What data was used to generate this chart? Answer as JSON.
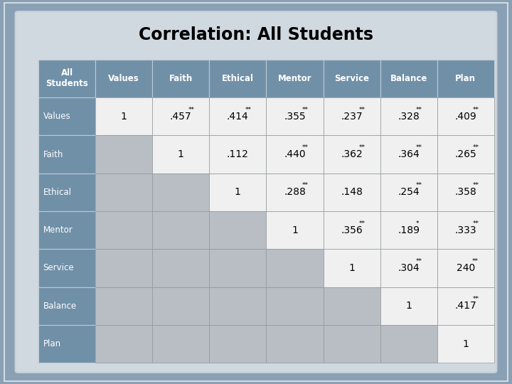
{
  "title": "Correlation: All Students",
  "col_headers": [
    "All\nStudents",
    "Values",
    "Faith",
    "Ethical",
    "Mentor",
    "Service",
    "Balance",
    "Plan"
  ],
  "row_labels": [
    "Values",
    "Faith",
    "Ethical",
    "Mentor",
    "Service",
    "Balance",
    "Plan"
  ],
  "cell_data": [
    [
      "1",
      ".457**",
      ".414**",
      ".355**",
      ".237**",
      ".328**",
      ".409**"
    ],
    [
      "",
      "1",
      ".112",
      ".440**",
      ".362**",
      ".364**",
      ".265**"
    ],
    [
      "",
      "",
      "1",
      ".288**",
      ".148",
      ".254**",
      ".358**"
    ],
    [
      "",
      "",
      "",
      "1",
      ".356**",
      ".189*",
      ".333**"
    ],
    [
      "",
      "",
      "",
      "",
      "1",
      ".304**",
      "240**"
    ],
    [
      "",
      "",
      "",
      "",
      "",
      "1",
      ".417**"
    ],
    [
      "",
      "",
      "",
      "",
      "",
      "",
      "1"
    ]
  ],
  "header_bg": "#7090a8",
  "header_text": "#ffffff",
  "row_label_bg": "#7090a8",
  "row_label_text": "#ffffff",
  "cell_white_bg": "#f0f0f0",
  "cell_gray_bg": "#b8bec4",
  "outer_bg": "#8aa0b4",
  "inner_bg": "#d0d8e0",
  "title_fontsize": 17,
  "header_fontsize": 8.5,
  "cell_fontsize": 10,
  "row_label_fontsize": 8.5
}
